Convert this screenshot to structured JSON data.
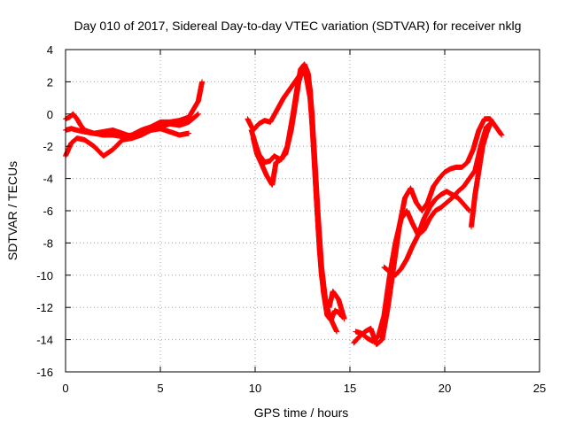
{
  "chart_data": {
    "type": "scatter",
    "title": "Day 010 of 2017, Sidereal Day-to-day VTEC variation (SDTVAR) for receiver nklg",
    "xlabel": "GPS time / hours",
    "ylabel": "SDTVAR / TECUs",
    "xlim": [
      0,
      25
    ],
    "ylim": [
      -16,
      4
    ],
    "xticks": [
      0,
      5,
      10,
      15,
      20,
      25
    ],
    "yticks": [
      -16,
      -14,
      -12,
      -10,
      -8,
      -6,
      -4,
      -2,
      0,
      2,
      4
    ],
    "xtick_labels": [
      "0",
      "5",
      "10",
      "15",
      "20",
      "25"
    ],
    "ytick_labels": [
      "-16",
      "-14",
      "-12",
      "-10",
      "-8",
      "-6",
      "-4",
      "-2",
      "0",
      "2",
      "4"
    ],
    "grid": true,
    "marker": "+",
    "color": "#ff0000",
    "series": [
      {
        "x": [
          0.0,
          0.2,
          0.4,
          0.6,
          0.8,
          1.0,
          1.5,
          2.0,
          2.5,
          3.0,
          3.5,
          4.0,
          4.5,
          5.0,
          5.5,
          6.0,
          6.5,
          7.0,
          7.2
        ],
        "y": [
          -0.3,
          -0.2,
          0.0,
          -0.3,
          -0.7,
          -1.0,
          -1.2,
          -1.3,
          -1.3,
          -1.4,
          -1.3,
          -1.0,
          -0.8,
          -0.5,
          -0.5,
          -0.4,
          -0.2,
          0.8,
          2.0
        ]
      },
      {
        "x": [
          0.0,
          0.3,
          0.6,
          1.0,
          1.5,
          2.0,
          2.5,
          3.0,
          3.5,
          4.0,
          4.5,
          5.0,
          5.5,
          6.0,
          6.5,
          7.0
        ],
        "y": [
          -1.0,
          -0.9,
          -1.0,
          -1.1,
          -1.2,
          -1.1,
          -1.0,
          -1.2,
          -1.4,
          -1.2,
          -1.0,
          -0.8,
          -0.6,
          -0.7,
          -0.5,
          0.0
        ]
      },
      {
        "x": [
          0.0,
          0.3,
          0.6,
          1.0,
          1.5,
          2.0,
          2.5,
          3.0,
          3.5,
          4.0,
          4.5,
          5.0,
          5.5,
          6.0,
          6.5
        ],
        "y": [
          -2.6,
          -1.8,
          -1.5,
          -1.6,
          -2.0,
          -2.6,
          -2.2,
          -1.6,
          -1.5,
          -1.3,
          -1.0,
          -0.9,
          -1.1,
          -1.3,
          -1.2
        ]
      },
      {
        "x": [
          9.8,
          10.0,
          10.2,
          10.5,
          10.8,
          11.0,
          11.3,
          11.6,
          11.9,
          12.1,
          12.3,
          12.5,
          12.7,
          12.9,
          13.1,
          13.3,
          13.5,
          13.7,
          13.9,
          14.1,
          14.3
        ],
        "y": [
          -1.0,
          -1.8,
          -2.5,
          -3.0,
          -2.9,
          -2.6,
          -2.8,
          -2.5,
          -1.0,
          0.5,
          2.0,
          2.8,
          2.3,
          1.0,
          -2.0,
          -6.0,
          -9.5,
          -11.5,
          -12.5,
          -13.0,
          -13.5
        ]
      },
      {
        "x": [
          9.9,
          10.1,
          10.3,
          10.6,
          10.9,
          11.1,
          11.4,
          11.7,
          12.0,
          12.2,
          12.4,
          12.6,
          12.8,
          13.0,
          13.2,
          13.4,
          13.6,
          13.8,
          14.0,
          14.2,
          14.4,
          14.6
        ],
        "y": [
          -1.5,
          -2.5,
          -3.0,
          -3.8,
          -4.4,
          -3.0,
          -2.8,
          -2.0,
          0.0,
          1.5,
          2.8,
          3.1,
          2.5,
          0.0,
          -4.5,
          -8.5,
          -11.0,
          -12.5,
          -12.8,
          -12.2,
          -12.3,
          -12.6
        ]
      },
      {
        "x": [
          9.6,
          9.9,
          10.2,
          10.5,
          10.8,
          11.5,
          11.8,
          12.1,
          12.4,
          12.7,
          12.9,
          13.1,
          13.3,
          13.5,
          13.7,
          13.9,
          14.1,
          14.4,
          14.7
        ],
        "y": [
          -0.3,
          -1.0,
          -0.6,
          -0.4,
          -0.5,
          1.0,
          1.5,
          2.0,
          2.5,
          2.8,
          1.5,
          -2.5,
          -6.5,
          -10.0,
          -11.5,
          -12.0,
          -11.0,
          -11.5,
          -12.7
        ]
      },
      {
        "x": [
          15.2,
          15.5,
          15.8,
          16.1,
          16.4,
          16.7,
          17.0,
          17.3,
          17.6,
          17.9,
          18.2,
          18.5,
          18.8,
          19.1,
          19.4,
          19.7,
          20.0,
          20.3,
          20.6,
          20.9,
          21.2,
          21.5,
          21.8,
          22.1,
          22.4,
          22.7,
          23.0
        ],
        "y": [
          -14.2,
          -13.8,
          -13.5,
          -13.3,
          -14.3,
          -14.0,
          -12.0,
          -9.5,
          -7.0,
          -5.2,
          -4.6,
          -5.5,
          -6.0,
          -5.5,
          -4.5,
          -4.0,
          -3.6,
          -3.4,
          -3.3,
          -3.3,
          -3.0,
          -2.2,
          -1.0,
          -0.3,
          -0.3,
          -0.8,
          -1.3
        ]
      },
      {
        "x": [
          15.3,
          15.6,
          15.9,
          16.2,
          16.5,
          16.8,
          17.1,
          17.4,
          17.7,
          18.0,
          18.3,
          18.6,
          18.9,
          19.2,
          19.5,
          19.8,
          20.1,
          20.4,
          20.7,
          21.0,
          21.3,
          21.6,
          21.9,
          22.2,
          22.5
        ],
        "y": [
          -13.5,
          -13.6,
          -13.9,
          -14.1,
          -13.8,
          -12.5,
          -10.0,
          -8.0,
          -6.5,
          -6.0,
          -6.8,
          -7.5,
          -7.2,
          -6.5,
          -6.0,
          -5.8,
          -5.5,
          -5.2,
          -4.8,
          -4.5,
          -4.0,
          -3.5,
          -2.0,
          -0.8,
          -0.5
        ]
      },
      {
        "x": [
          16.8,
          17.1,
          17.4,
          17.7,
          18.0,
          18.3,
          18.6,
          18.9,
          19.2,
          19.5,
          19.8,
          20.1,
          20.4,
          20.7,
          21.0,
          21.3
        ],
        "y": [
          -9.5,
          -9.8,
          -10.0,
          -9.6,
          -9.0,
          -8.2,
          -7.5,
          -6.5,
          -5.8,
          -5.3,
          -5.0,
          -4.8,
          -5.0,
          -5.2,
          -5.6,
          -6.0
        ]
      },
      {
        "x": [
          21.4,
          21.6,
          21.8,
          22.0,
          22.2,
          22.4
        ],
        "y": [
          -7.0,
          -5.0,
          -3.5,
          -2.0,
          -1.2,
          -0.6
        ]
      }
    ]
  }
}
